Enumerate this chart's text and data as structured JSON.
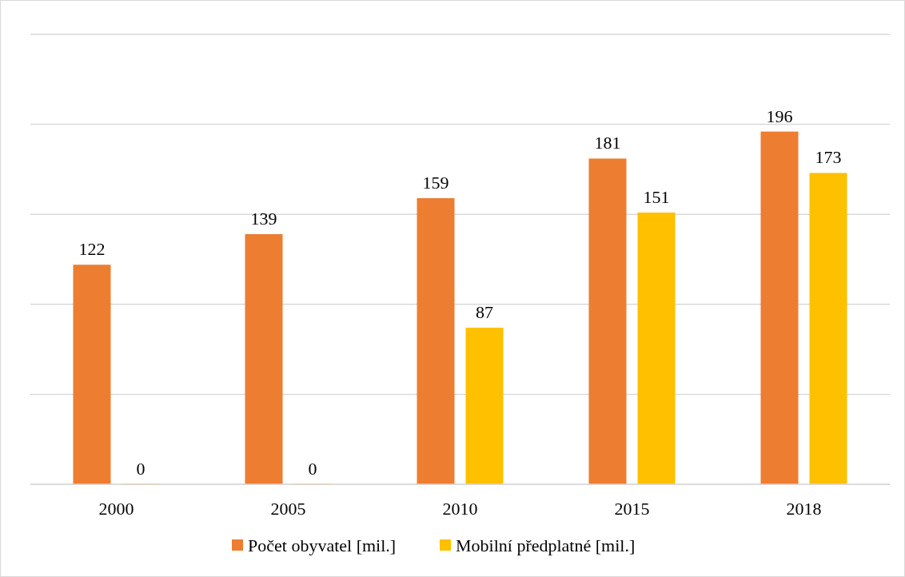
{
  "chart_data": {
    "type": "bar",
    "categories": [
      "2000",
      "2005",
      "2010",
      "2015",
      "2018"
    ],
    "series": [
      {
        "name": "Počet obyvatel [mil.]",
        "color": "#ed7d31",
        "values": [
          122,
          139,
          159,
          181,
          196
        ]
      },
      {
        "name": "Mobilní předplatné [mil.]",
        "color": "#ffc000",
        "values": [
          0,
          0,
          87,
          151,
          173
        ]
      }
    ],
    "ylim": [
      0,
      250
    ],
    "yticks": [
      {
        "value": 0,
        "label": null
      },
      {
        "value": 50,
        "label": null
      },
      {
        "value": 100,
        "label": null
      },
      {
        "value": 150,
        "label": null
      },
      {
        "value": 200,
        "label": null
      },
      {
        "value": 250,
        "label": null
      }
    ],
    "tick_labels": "x",
    "grid": "y",
    "legend": "bottom",
    "data_labels": true
  }
}
